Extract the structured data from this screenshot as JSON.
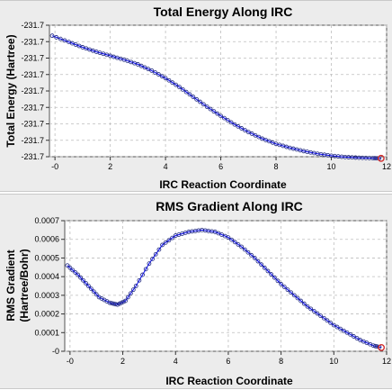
{
  "chart_data": [
    {
      "id": "energy",
      "type": "scatter",
      "title": "Total Energy Along IRC",
      "xlabel": "IRC Reaction Coordinate",
      "ylabel": "Total Energy (Hartree)",
      "xlim": [
        -0.2,
        12.0
      ],
      "ylim": [
        -231.74,
        -231.72
      ],
      "x_ticks": [
        {
          "value": 0,
          "label": "-0"
        },
        {
          "value": 2,
          "label": "2"
        },
        {
          "value": 4,
          "label": "4"
        },
        {
          "value": 6,
          "label": "6"
        },
        {
          "value": 8,
          "label": "8"
        },
        {
          "value": 10,
          "label": "10"
        },
        {
          "value": 12,
          "label": "12"
        }
      ],
      "y_ticks": [
        {
          "value": -231.72,
          "label": "-231.7"
        },
        {
          "value": -231.7225,
          "label": "-231.7"
        },
        {
          "value": -231.725,
          "label": "-231.7"
        },
        {
          "value": -231.7275,
          "label": "-231.7"
        },
        {
          "value": -231.73,
          "label": "-231.7"
        },
        {
          "value": -231.7325,
          "label": "-231.7"
        },
        {
          "value": -231.735,
          "label": "-231.7"
        },
        {
          "value": -231.7375,
          "label": "-231.7"
        },
        {
          "value": -231.74,
          "label": "-231.7"
        }
      ],
      "grid": true,
      "colors": {
        "line": "#0000ff",
        "marker": "#1a237e",
        "last_marker": "#d32f2f"
      },
      "series": [
        {
          "x": [
            -0.1,
            0.5,
            1.0,
            1.5,
            2.0,
            2.5,
            3.0,
            3.5,
            4.0,
            4.5,
            5.0,
            5.5,
            6.0,
            6.5,
            7.0,
            7.5,
            8.0,
            8.5,
            9.0,
            9.5,
            10.0,
            10.5,
            11.0,
            11.5,
            11.8
          ],
          "y": [
            -231.7216,
            -231.72255,
            -231.72335,
            -231.72405,
            -231.72465,
            -231.72525,
            -231.72595,
            -231.7269,
            -231.72805,
            -231.7294,
            -231.7309,
            -231.7324,
            -231.7338,
            -231.7351,
            -231.73625,
            -231.73725,
            -231.73805,
            -231.73865,
            -231.73915,
            -231.73955,
            -231.73985,
            -231.74005,
            -231.74015,
            -231.74022,
            -231.74025
          ]
        }
      ]
    },
    {
      "id": "gradient",
      "type": "scatter",
      "title": "RMS Gradient Along IRC",
      "xlabel": "IRC Reaction Coordinate",
      "ylabel": [
        "RMS Gradient",
        "(Hartree/Bohr)"
      ],
      "xlim": [
        -0.2,
        12.0
      ],
      "ylim": [
        0,
        0.0007
      ],
      "x_ticks": [
        {
          "value": 0,
          "label": "-0"
        },
        {
          "value": 2,
          "label": "2"
        },
        {
          "value": 4,
          "label": "4"
        },
        {
          "value": 6,
          "label": "6"
        },
        {
          "value": 8,
          "label": "8"
        },
        {
          "value": 10,
          "label": "10"
        },
        {
          "value": 12,
          "label": "12"
        }
      ],
      "y_ticks": [
        {
          "value": 0,
          "label": "-0"
        },
        {
          "value": 0.0001,
          "label": "0.0001"
        },
        {
          "value": 0.0002,
          "label": "0.0002"
        },
        {
          "value": 0.0003,
          "label": "0.0003"
        },
        {
          "value": 0.0004,
          "label": "0.0004"
        },
        {
          "value": 0.0005,
          "label": "0.0005"
        },
        {
          "value": 0.0006,
          "label": "0.0006"
        },
        {
          "value": 0.0007,
          "label": "0.0007"
        }
      ],
      "grid": true,
      "colors": {
        "line": "#0000ff",
        "marker": "#1a237e",
        "last_marker": "#d32f2f"
      },
      "series": [
        {
          "x": [
            -0.1,
            0.3,
            0.7,
            1.1,
            1.5,
            1.8,
            2.1,
            2.5,
            3.0,
            3.5,
            4.0,
            4.5,
            5.0,
            5.5,
            6.0,
            6.5,
            7.0,
            7.5,
            8.0,
            8.5,
            9.0,
            9.5,
            10.0,
            10.5,
            11.0,
            11.5,
            11.8
          ],
          "y": [
            0.00046,
            0.00041,
            0.00035,
            0.00029,
            0.00026,
            0.00025,
            0.00027,
            0.00035,
            0.00047,
            0.00057,
            0.00062,
            0.00064,
            0.00065,
            0.00064,
            0.00061,
            0.00056,
            0.0005,
            0.00043,
            0.00036,
            0.0003,
            0.00024,
            0.00019,
            0.00014,
            0.0001,
            6e-05,
            3e-05,
            2e-05
          ]
        }
      ]
    }
  ]
}
